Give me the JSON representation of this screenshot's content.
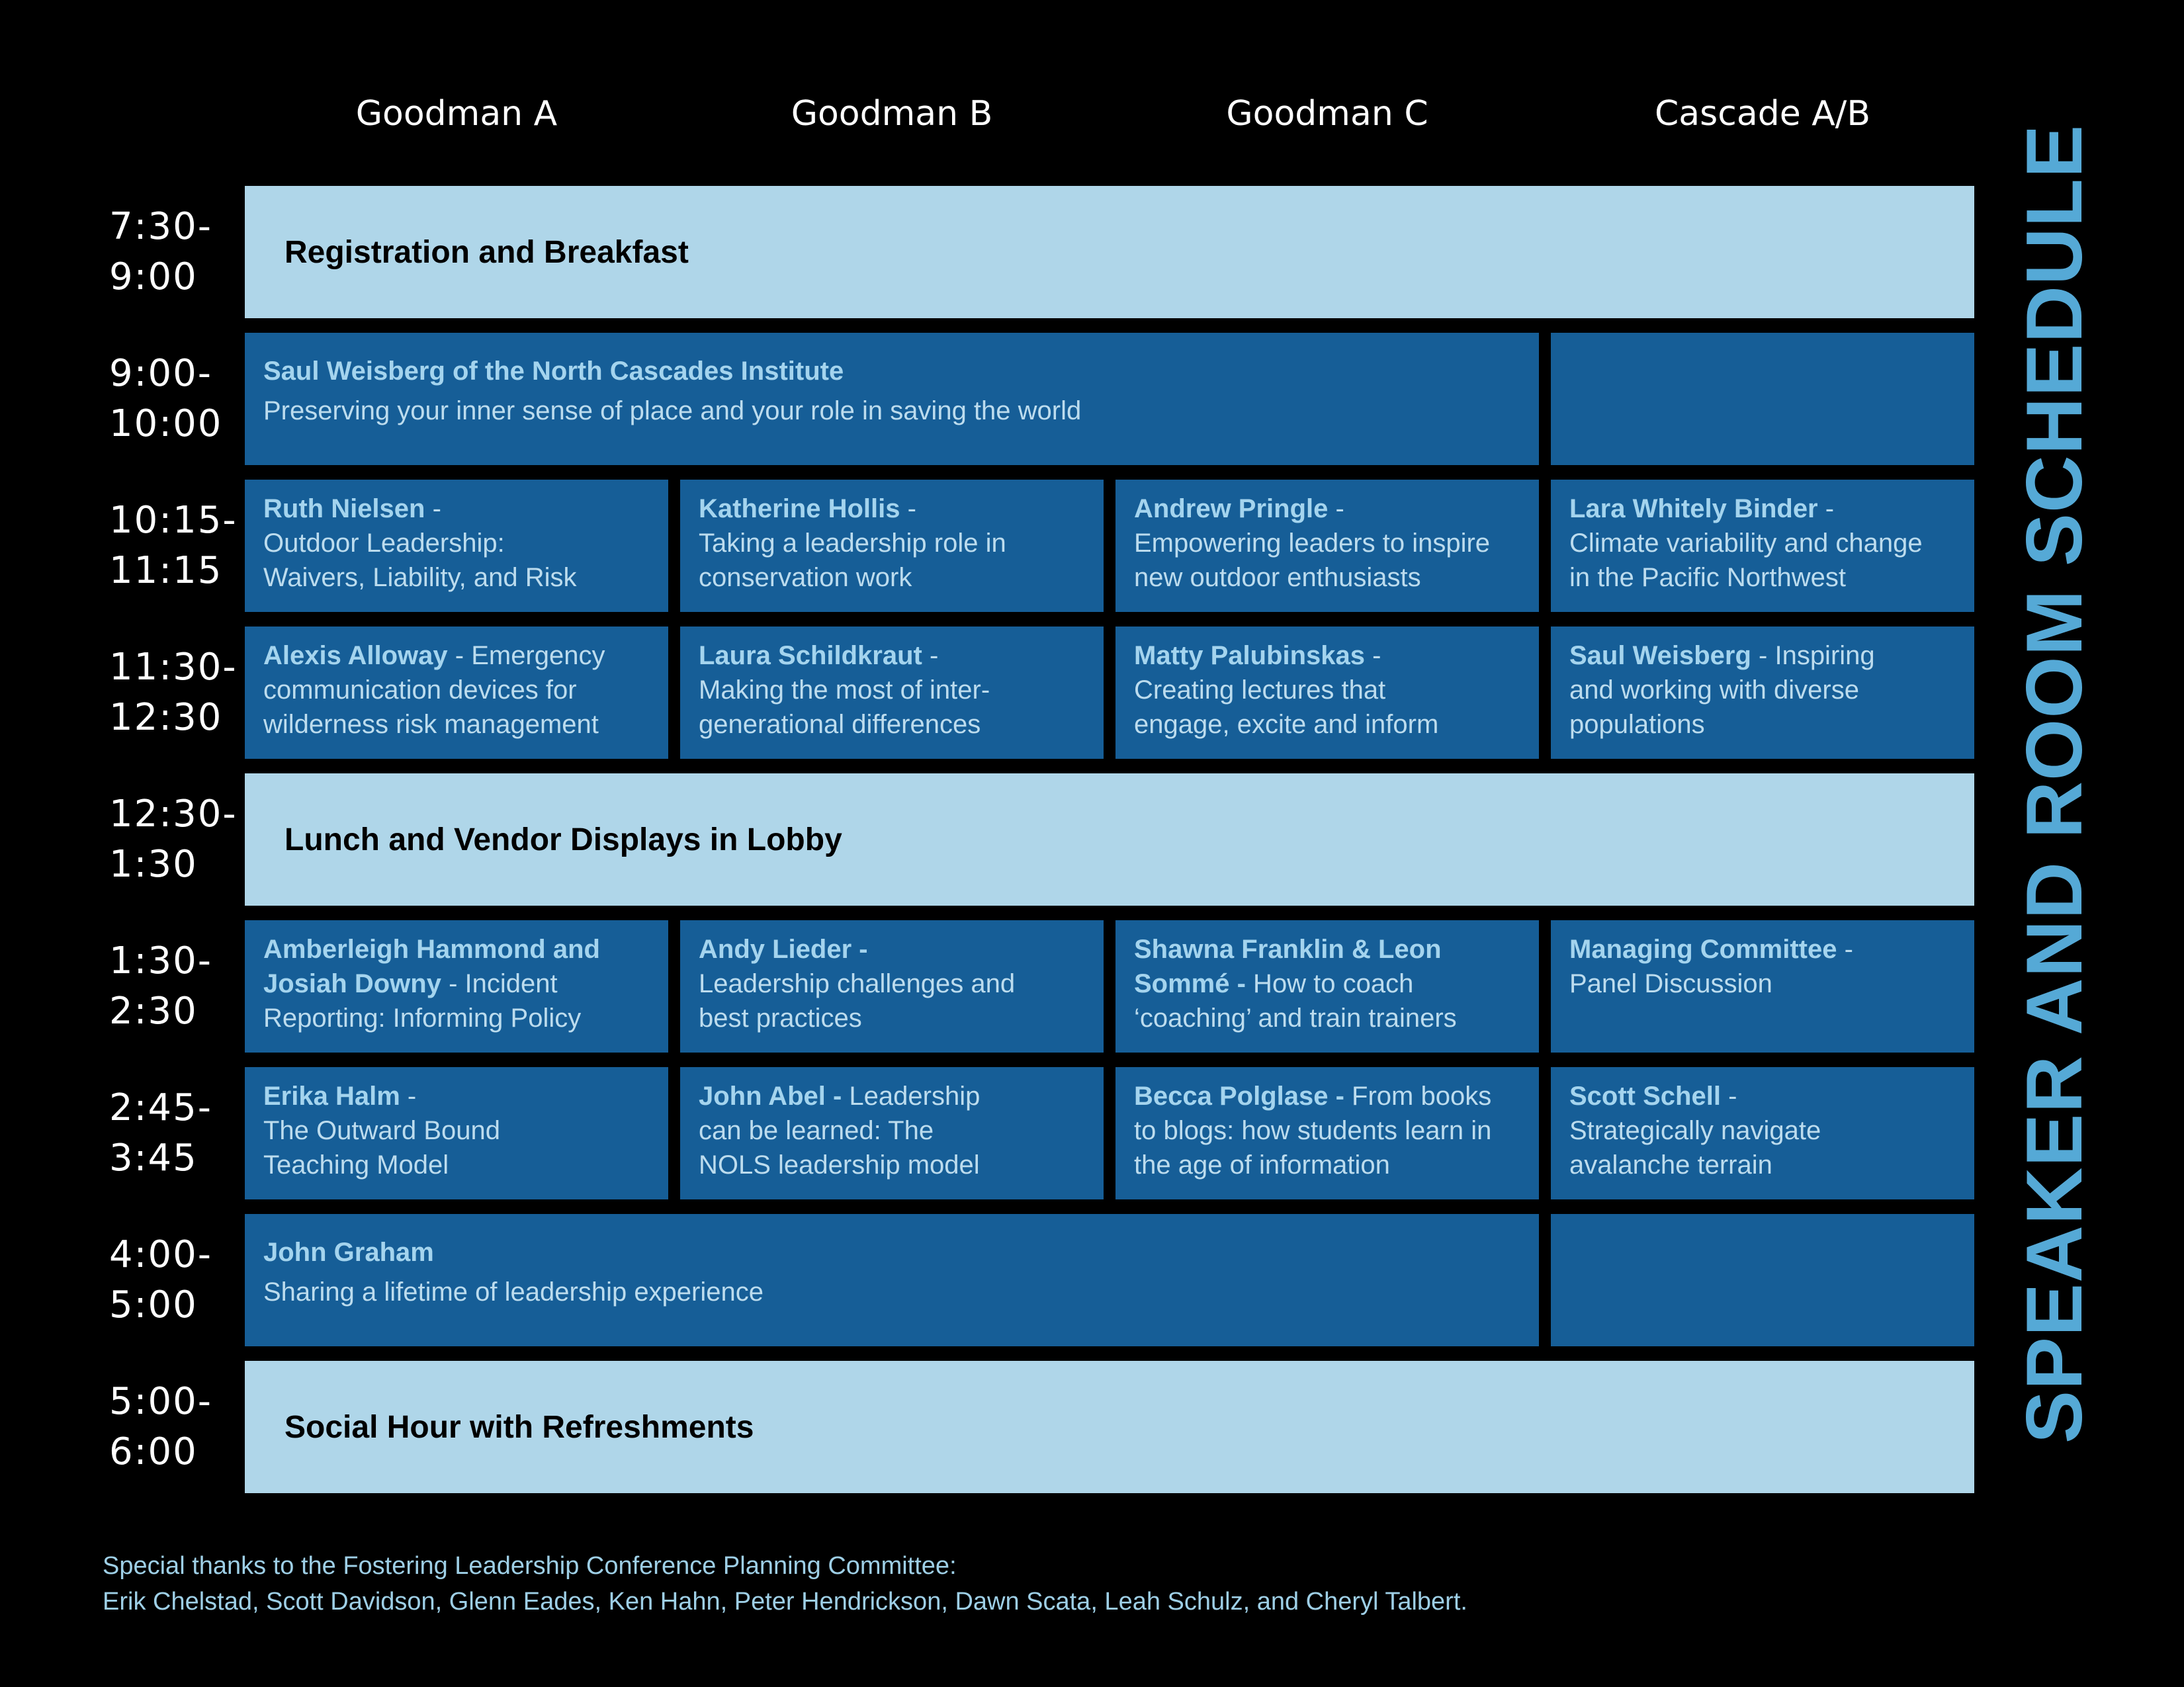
{
  "title": "SPEAKER AND ROOM SCHEDULE",
  "colors": {
    "background": "#000000",
    "session_box": "#165e97",
    "banner_row": "#afd6e9",
    "speaker_name_text": "#a4d4ee",
    "session_body_text": "#bcdcee",
    "title_text": "#55a9d6",
    "header_text": "#ffffff",
    "footer_text": "#9ecfe6"
  },
  "columns": [
    {
      "label": "Goodman A"
    },
    {
      "label": "Goodman B"
    },
    {
      "label": "Goodman C"
    },
    {
      "label": "Cascade A/B"
    }
  ],
  "rows": [
    {
      "time_lines": [
        "7:30-",
        "9:00"
      ],
      "type": "banner",
      "label": "Registration and Breakfast"
    },
    {
      "time_lines": [
        "9:00-",
        "10:00"
      ],
      "type": "cells",
      "cells": [
        {
          "span": 3,
          "tall": true,
          "lines": [
            {
              "b": "Saul Weisberg of the North Cascades Institute"
            },
            {
              "r": "Preserving your inner sense of place and your role in saving the world"
            }
          ]
        },
        {
          "span": 1,
          "lines": []
        }
      ]
    },
    {
      "time_lines": [
        "10:15-",
        "11:15"
      ],
      "type": "cells",
      "cells": [
        {
          "span": 1,
          "lines": [
            {
              "b": "Ruth Nielsen",
              "r": " -"
            },
            {
              "r": "Outdoor Leadership:"
            },
            {
              "r": "Waivers, Liability, and Risk"
            }
          ]
        },
        {
          "span": 1,
          "lines": [
            {
              "b": "Katherine Hollis",
              "r": " -"
            },
            {
              "r": "Taking a leadership role in"
            },
            {
              "r": "conservation work"
            }
          ]
        },
        {
          "span": 1,
          "lines": [
            {
              "b": "Andrew Pringle",
              "r": " -"
            },
            {
              "r": "Empowering leaders to inspire"
            },
            {
              "r": "new outdoor enthusiasts"
            }
          ]
        },
        {
          "span": 1,
          "lines": [
            {
              "b": "Lara Whitely Binder",
              "r": " -"
            },
            {
              "r": "Climate variability and change"
            },
            {
              "r": "in the Pacific Northwest"
            }
          ]
        }
      ]
    },
    {
      "time_lines": [
        "11:30-",
        "12:30"
      ],
      "type": "cells",
      "cells": [
        {
          "span": 1,
          "lines": [
            {
              "b": "Alexis Alloway",
              "r": " - Emergency"
            },
            {
              "r": "communication devices for"
            },
            {
              "r": "wilderness risk management"
            }
          ]
        },
        {
          "span": 1,
          "lines": [
            {
              "b": "Laura Schildkraut",
              "r": " -"
            },
            {
              "r": "Making the most of inter-"
            },
            {
              "r": "generational differences"
            }
          ]
        },
        {
          "span": 1,
          "lines": [
            {
              "b": "Matty Palubinskas",
              "r": " -"
            },
            {
              "r": "Creating lectures that"
            },
            {
              "r": "engage, excite and inform"
            }
          ]
        },
        {
          "span": 1,
          "lines": [
            {
              "b": "Saul Weisberg",
              "r": " - Inspiring"
            },
            {
              "r": "and working with diverse"
            },
            {
              "r": "populations"
            }
          ]
        }
      ]
    },
    {
      "time_lines": [
        "12:30-",
        "1:30"
      ],
      "type": "banner",
      "label": "Lunch and Vendor Displays in Lobby"
    },
    {
      "time_lines": [
        "1:30-",
        "2:30"
      ],
      "type": "cells",
      "cells": [
        {
          "span": 1,
          "lines": [
            {
              "b": "Amberleigh Hammond and"
            },
            {
              "b": "Josiah Downy",
              "r": " - Incident"
            },
            {
              "r": "Reporting: Informing Policy"
            }
          ]
        },
        {
          "span": 1,
          "lines": [
            {
              "b": "Andy Lieder -"
            },
            {
              "r": "Leadership challenges and"
            },
            {
              "r": "best practices"
            }
          ]
        },
        {
          "span": 1,
          "lines": [
            {
              "b": "Shawna Franklin & Leon"
            },
            {
              "b": "Sommé -",
              "r": " How to coach"
            },
            {
              "r": "‘coaching’ and train trainers"
            }
          ]
        },
        {
          "span": 1,
          "lines": [
            {
              "b": "Managing Committee",
              "r": " -"
            },
            {
              "r": "Panel Discussion"
            }
          ]
        }
      ]
    },
    {
      "time_lines": [
        "2:45-",
        "3:45"
      ],
      "type": "cells",
      "cells": [
        {
          "span": 1,
          "lines": [
            {
              "b": "Erika Halm",
              "r": " -"
            },
            {
              "r": "The Outward Bound"
            },
            {
              "r": "Teaching Model"
            }
          ]
        },
        {
          "span": 1,
          "lines": [
            {
              "b": "John Abel -",
              "r": " Leadership"
            },
            {
              "r": "can be learned: The"
            },
            {
              "r": "NOLS leadership model"
            }
          ]
        },
        {
          "span": 1,
          "lines": [
            {
              "b": "Becca Polglase -",
              "r": " From books"
            },
            {
              "r": "to blogs: how students learn in"
            },
            {
              "r": "the age of information"
            }
          ]
        },
        {
          "span": 1,
          "lines": [
            {
              "b": "Scott Schell",
              "r": " -"
            },
            {
              "r": "Strategically navigate"
            },
            {
              "r": "avalanche terrain"
            }
          ]
        }
      ]
    },
    {
      "time_lines": [
        "4:00-",
        "5:00"
      ],
      "type": "cells",
      "cells": [
        {
          "span": 3,
          "tall": true,
          "lines": [
            {
              "b": "John Graham"
            },
            {
              "r": "Sharing a lifetime of leadership experience"
            }
          ]
        },
        {
          "span": 1,
          "lines": []
        }
      ]
    },
    {
      "time_lines": [
        "5:00-",
        "6:00"
      ],
      "type": "banner",
      "label": "Social Hour with Refreshments"
    }
  ],
  "footer": {
    "line1": "Special thanks to the Fostering Leadership Conference Planning Committee:",
    "line2": "Erik Chelstad, Scott Davidson, Glenn Eades, Ken Hahn, Peter Hendrickson, Dawn Scata, Leah Schulz, and Cheryl Talbert."
  }
}
